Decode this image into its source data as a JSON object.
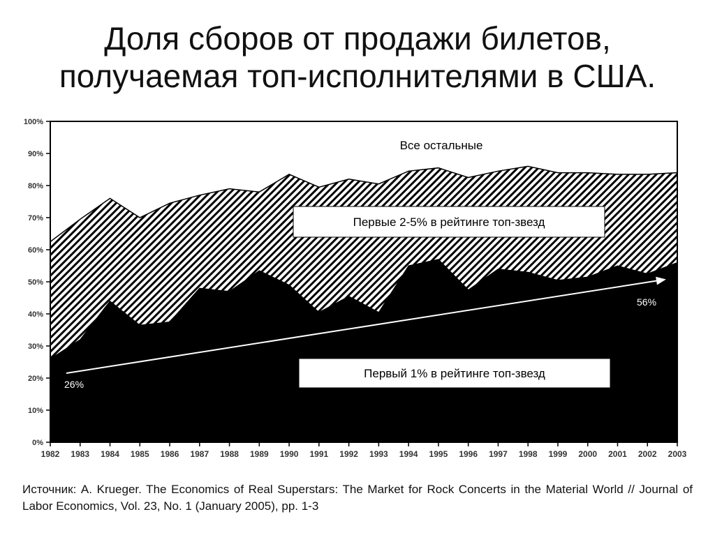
{
  "title": {
    "line1": "Доля сборов от продажи билетов,",
    "line2": "получаемая топ-исполнителями в США."
  },
  "chart_data": {
    "type": "area",
    "stacked": true,
    "x": [
      "1982",
      "1983",
      "1984",
      "1985",
      "1986",
      "1987",
      "1988",
      "1989",
      "1990",
      "1991",
      "1992",
      "1993",
      "1994",
      "1995",
      "1996",
      "1997",
      "1998",
      "1999",
      "2000",
      "2001",
      "2002",
      "2003"
    ],
    "ylim": [
      0,
      100
    ],
    "yticks": [
      "0%",
      "10%",
      "20%",
      "30%",
      "40%",
      "50%",
      "60%",
      "70%",
      "80%",
      "90%",
      "100%"
    ],
    "series": [
      {
        "name": "Первый 1% в рейтинге топ-звезд",
        "fill": "#000000",
        "values": [
          26,
          32,
          44,
          36.5,
          37.5,
          48,
          47,
          53.5,
          49,
          40.5,
          45.5,
          40.5,
          55,
          57,
          47.5,
          54,
          53,
          50.5,
          51.5,
          55,
          52.5,
          56
        ]
      },
      {
        "name": "Первые 2-5% в рейтинге топ-звезд",
        "fill": "hatched",
        "cumulative": [
          62.5,
          69.5,
          76,
          70,
          74.5,
          77,
          79,
          78,
          83.5,
          79.5,
          82,
          80.5,
          84.5,
          85.5,
          82.5,
          84.5,
          86,
          84,
          84,
          83.5,
          83.5,
          84
        ]
      },
      {
        "name": "Все остальные",
        "fill": "#ffffff"
      }
    ],
    "trend_line": {
      "from_label": "26%",
      "to_label": "56%"
    }
  },
  "source": "Источник: A. Krueger. The Economics of Real Superstars: The Market for Rock Concerts in the Material World // Journal of Labor Economics, Vol. 23, No. 1 (January 2005), pp. 1-3"
}
